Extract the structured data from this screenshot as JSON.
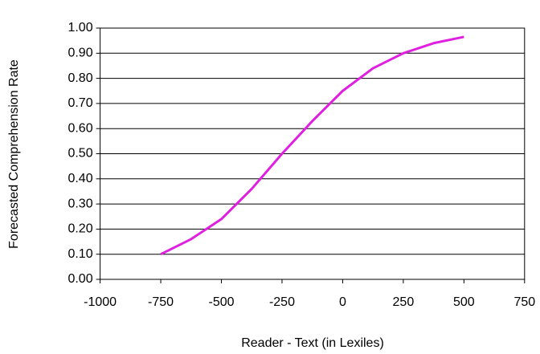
{
  "chart_data": {
    "type": "line",
    "x_label": "Reader - Text (in Lexiles)",
    "y_label": "Forecasted Comprehension Rate",
    "x": [
      -750,
      -625,
      -500,
      -375,
      -250,
      -125,
      0,
      125,
      250,
      375,
      500
    ],
    "series": [
      {
        "color": "#e020e0",
        "values": [
          0.1,
          0.16,
          0.24,
          0.36,
          0.5,
          0.63,
          0.75,
          0.84,
          0.9,
          0.94,
          0.965
        ]
      }
    ],
    "xlim": [
      -1000,
      750
    ],
    "xticks": [
      -1000,
      -750,
      -500,
      -250,
      0,
      250,
      500,
      750
    ],
    "ylim": [
      0,
      1
    ],
    "yticks": [
      {
        "value": 0,
        "label": "0.00"
      },
      {
        "value": 0.1,
        "label": "0.10"
      },
      {
        "value": 0.2,
        "label": "0.20"
      },
      {
        "value": 0.3,
        "label": "0.30"
      },
      {
        "value": 0.4,
        "label": "0.40"
      },
      {
        "value": 0.5,
        "label": "0.50"
      },
      {
        "value": 0.6,
        "label": "0.60"
      },
      {
        "value": 0.7,
        "label": "0.70"
      },
      {
        "value": 0.8,
        "label": "0.80"
      },
      {
        "value": 0.9,
        "label": "0.90"
      },
      {
        "value": 1,
        "label": "1.00"
      }
    ],
    "grid": true
  }
}
